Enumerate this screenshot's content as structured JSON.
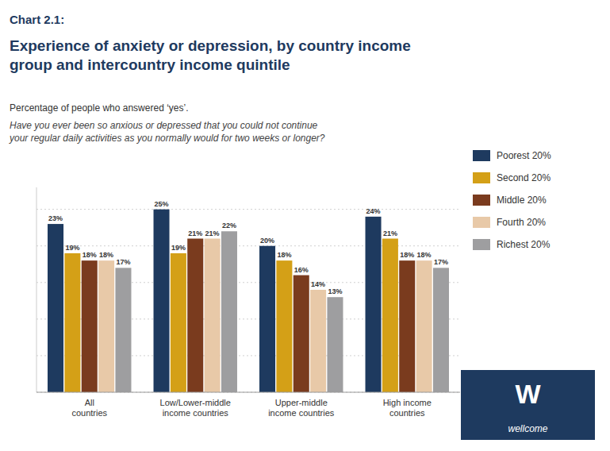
{
  "chart_data": {
    "type": "bar",
    "title": "Experience of anxiety or depression, by country income\ngroup and intercountry income quintile",
    "subtitle": "Percentage of people who answered ‘yes’.",
    "annotations": [
      "Chart 2.1:",
      "Have you ever been so anxious or depressed that you could not continue\nyour regular daily activities as you normally would for two weeks or longer?",
      "W",
      "wellcome"
    ],
    "categories": [
      "All\ncountries",
      "Low/Lower-middle\nincome countries",
      "Upper-middle\nincome countries",
      "High income\ncountries"
    ],
    "series": [
      {
        "name": "Poorest 20%",
        "color": "#1e3a5f",
        "values": [
          23,
          25,
          20,
          24
        ],
        "value_labels": [
          "23%",
          "25%",
          "20%",
          "24%"
        ]
      },
      {
        "name": "Second 20%",
        "color": "#d4a017",
        "values": [
          19,
          19,
          18,
          21
        ],
        "value_labels": [
          "19%",
          "19%",
          "18%",
          "21%"
        ]
      },
      {
        "name": "Middle 20%",
        "color": "#7a3b1e",
        "values": [
          18,
          21,
          16,
          18
        ],
        "value_labels": [
          "18%",
          "21%",
          "16%",
          "18%"
        ]
      },
      {
        "name": "Fourth 20%",
        "color": "#e8c9a8",
        "values": [
          18,
          21,
          14,
          18
        ],
        "value_labels": [
          "18%",
          "21%",
          "14%",
          "18%"
        ]
      },
      {
        "name": "Richest 20%",
        "color": "#9e9ea0",
        "values": [
          17,
          22,
          13,
          17
        ],
        "value_labels": [
          "17%",
          "22%",
          "13%",
          "17%"
        ]
      }
    ],
    "ylim": [
      0,
      28
    ],
    "yticks": [
      0,
      5,
      10,
      15,
      20,
      25
    ],
    "grid": true,
    "tick_labels": "x",
    "data_labels": true,
    "legend": "right"
  }
}
